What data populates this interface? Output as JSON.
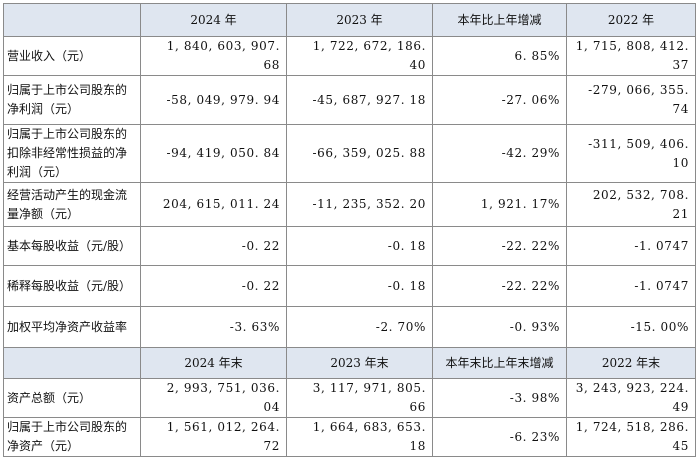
{
  "table": {
    "header1": [
      "",
      "2024 年",
      "2023 年",
      "本年比上年增减",
      "2022 年"
    ],
    "rows1": [
      {
        "label": "营业收入（元）",
        "v2024": "1, 840, 603, 907. 68",
        "v2023": "1, 722, 672, 186. 40",
        "change": "6. 85%",
        "v2022": "1, 715, 808, 412. 37"
      },
      {
        "label": "归属于上市公司股东的净利润（元）",
        "v2024": "-58, 049, 979. 94",
        "v2023": "-45, 687, 927. 18",
        "change": "-27. 06%",
        "v2022": "-279, 066, 355. 74"
      },
      {
        "label": "归属于上市公司股东的扣除非经常性损益的净利润（元）",
        "v2024": "-94, 419, 050. 84",
        "v2023": "-66, 359, 025. 88",
        "change": "-42. 29%",
        "v2022": "-311, 509, 406. 10"
      },
      {
        "label": "经营活动产生的现金流量净额（元）",
        "v2024": "204, 615, 011. 24",
        "v2023": "-11, 235, 352. 20",
        "change": "1, 921. 17%",
        "v2022": "202, 532, 708. 21"
      },
      {
        "label": "基本每股收益（元/股）",
        "v2024": "-0. 22",
        "v2023": "-0. 18",
        "change": "-22. 22%",
        "v2022": "-1. 0747"
      },
      {
        "label": "稀释每股收益（元/股）",
        "v2024": "-0. 22",
        "v2023": "-0. 18",
        "change": "-22. 22%",
        "v2022": "-1. 0747"
      },
      {
        "label": "加权平均净资产收益率",
        "v2024": "-3. 63%",
        "v2023": "-2. 70%",
        "change": "-0. 93%",
        "v2022": "-15. 00%"
      }
    ],
    "header2": [
      "",
      "2024 年末",
      "2023 年末",
      "本年末比上年末增减",
      "2022 年末"
    ],
    "rows2": [
      {
        "label": "资产总额（元）",
        "v2024": "2, 993, 751, 036. 04",
        "v2023": "3, 117, 971, 805. 66",
        "change": "-3. 98%",
        "v2022": "3, 243, 923, 224. 49"
      },
      {
        "label": "归属于上市公司股东的净资产（元）",
        "v2024": "1, 561, 012, 264. 72",
        "v2023": "1, 664, 683, 653. 18",
        "change": "-6. 23%",
        "v2022": "1, 724, 518, 286. 45"
      }
    ]
  }
}
